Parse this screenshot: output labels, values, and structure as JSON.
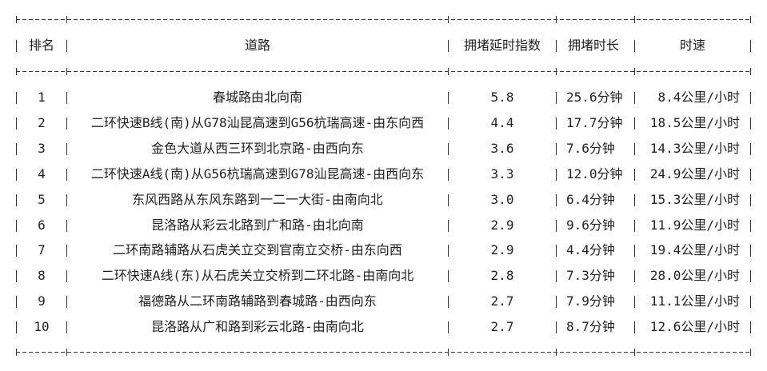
{
  "table": {
    "headers": [
      "排名",
      "道路",
      "拥堵延时指数",
      "拥堵时长",
      "时速"
    ],
    "rows": [
      [
        "1",
        "春城路由北向南",
        "5.8",
        "25.6分钟",
        "8.4公里/小时"
      ],
      [
        "2",
        "二环快速B线(南)从G78汕昆高速到G56杭瑞高速-由东向西",
        "4.4",
        "17.7分钟",
        "18.5公里/小时"
      ],
      [
        "3",
        "金色大道从西三环到北京路-由西向东",
        "3.6",
        "7.6分钟",
        "14.3公里/小时"
      ],
      [
        "4",
        "二环快速A线(南)从G56杭瑞高速到G78汕昆高速-由西向东",
        "3.3",
        "12.0分钟",
        "24.9公里/小时"
      ],
      [
        "5",
        "东风西路从东风东路到一二一大街-由南向北",
        "3.0",
        "6.4分钟",
        "15.3公里/小时"
      ],
      [
        "6",
        "昆洛路从彩云北路到广和路-由北向南",
        "2.9",
        "9.6分钟",
        "11.9公里/小时"
      ],
      [
        "7",
        "二环南路辅路从石虎关立交到官南立交桥-由东向西",
        "2.9",
        "4.4分钟",
        "19.4公里/小时"
      ],
      [
        "8",
        "二环快速A线(东)从石虎关立交桥到二环北路-由南向北",
        "2.8",
        "7.3分钟",
        "28.0公里/小时"
      ],
      [
        "9",
        "福德路从二环南路辅路到春城路-由西向东",
        "2.7",
        "7.9分钟",
        "11.1公里/小时"
      ],
      [
        "10",
        "昆洛路从广和路到彩云北路-由南向北",
        "2.7",
        "8.7分钟",
        "12.6公里/小时"
      ]
    ]
  }
}
